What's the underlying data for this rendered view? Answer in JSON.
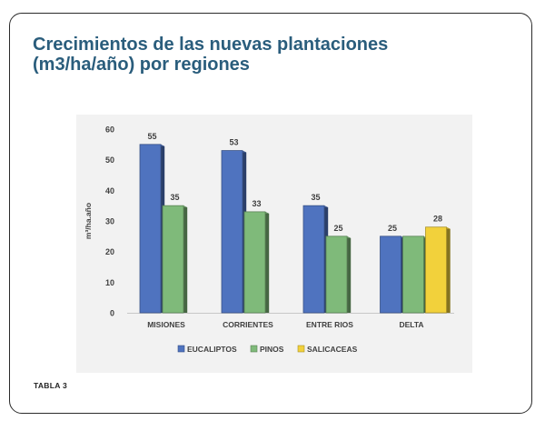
{
  "title_line1": "Crecimientos de las nuevas plantaciones",
  "title_line2": "(m3/ha/año) por regiones",
  "caption": "TABLA 3",
  "chart_data": {
    "type": "bar",
    "categories": [
      "MISIONES",
      "CORRIENTES",
      "ENTRE RIOS",
      "DELTA"
    ],
    "series": [
      {
        "name": "EUCALIPTOS",
        "values": [
          55,
          53,
          35,
          25
        ],
        "color": "#4f73bf"
      },
      {
        "name": "PINOS",
        "values": [
          35,
          33,
          25,
          25
        ],
        "color": "#7fba7a"
      },
      {
        "name": "SALICACEAS",
        "values": [
          null,
          null,
          null,
          28
        ],
        "color": "#f2d13b"
      }
    ],
    "data_labels": [
      [
        "55",
        "35",
        null
      ],
      [
        "53",
        "33",
        null
      ],
      [
        "35",
        "25",
        null
      ],
      [
        "25",
        null,
        "28"
      ]
    ],
    "ylabel": "m³/ha.año",
    "xlabel": "",
    "ylim": [
      0,
      60
    ],
    "yticks": [
      "0",
      "10",
      "20",
      "30",
      "40",
      "50",
      "60"
    ],
    "grid": false,
    "legend_position": "bottom",
    "chart_background": "#f2f2f2"
  }
}
